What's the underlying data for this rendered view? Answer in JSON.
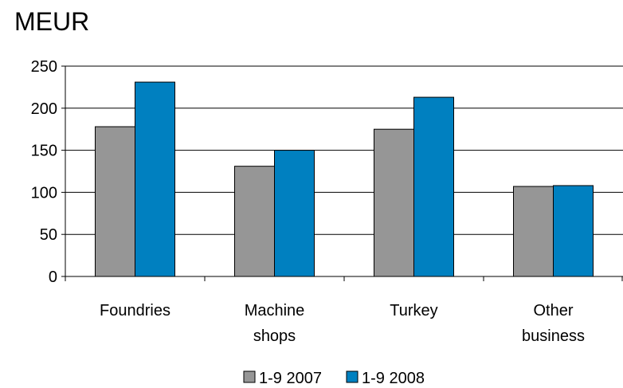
{
  "chart_data": {
    "type": "bar",
    "title": "MEUR",
    "categories": [
      [
        "Foundries"
      ],
      [
        "Machine",
        "shops"
      ],
      [
        "Turkey"
      ],
      [
        "Other",
        "business"
      ]
    ],
    "series": [
      {
        "name": "1-9 2007",
        "color": "#969696",
        "values": [
          178,
          131,
          175,
          107
        ]
      },
      {
        "name": "1-9 2008",
        "color": "#0080C0",
        "values": [
          231,
          150,
          213,
          108
        ]
      }
    ],
    "ylim": [
      0,
      250
    ],
    "yticks": [
      0,
      50,
      100,
      150,
      200,
      250
    ],
    "grid": true,
    "legend": "bottom"
  }
}
